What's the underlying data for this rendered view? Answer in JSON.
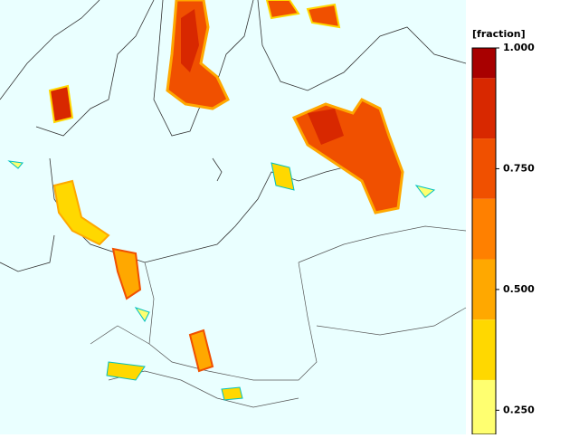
{
  "colorbar": {
    "title": "[fraction]",
    "lim": [
      0.2,
      1.0
    ],
    "ticks": [
      {
        "value": 1.0,
        "label": "1.000"
      },
      {
        "value": 0.75,
        "label": "0.750"
      },
      {
        "value": 0.5,
        "label": "0.500"
      },
      {
        "value": 0.25,
        "label": "0.250"
      }
    ],
    "bands": [
      {
        "from": 0.9375,
        "to": 1.0,
        "color": "#a80000"
      },
      {
        "from": 0.8125,
        "to": 0.9375,
        "color": "#d82800"
      },
      {
        "from": 0.6875,
        "to": 0.8125,
        "color": "#f05000"
      },
      {
        "from": 0.5625,
        "to": 0.6875,
        "color": "#ff8000"
      },
      {
        "from": 0.4375,
        "to": 0.5625,
        "color": "#ffa800"
      },
      {
        "from": 0.3125,
        "to": 0.4375,
        "color": "#ffd800"
      },
      {
        "from": 0.2,
        "to": 0.3125,
        "color": "#ffff70"
      }
    ]
  }
}
